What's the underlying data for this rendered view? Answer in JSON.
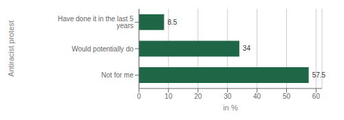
{
  "chart_data": {
    "type": "bar",
    "orientation": "horizontal",
    "categories": [
      "Have done it in the last 5 years",
      "Would potentially do",
      "Not for me"
    ],
    "values": [
      8.5,
      34,
      57.5
    ],
    "color": "#1e6645",
    "xlabel": "in %",
    "ylabel": "Antiracist protest",
    "xlim": [
      0,
      62
    ],
    "xticks": [
      0,
      10,
      20,
      30,
      40,
      50,
      60
    ],
    "grid": true,
    "data_labels": true
  }
}
